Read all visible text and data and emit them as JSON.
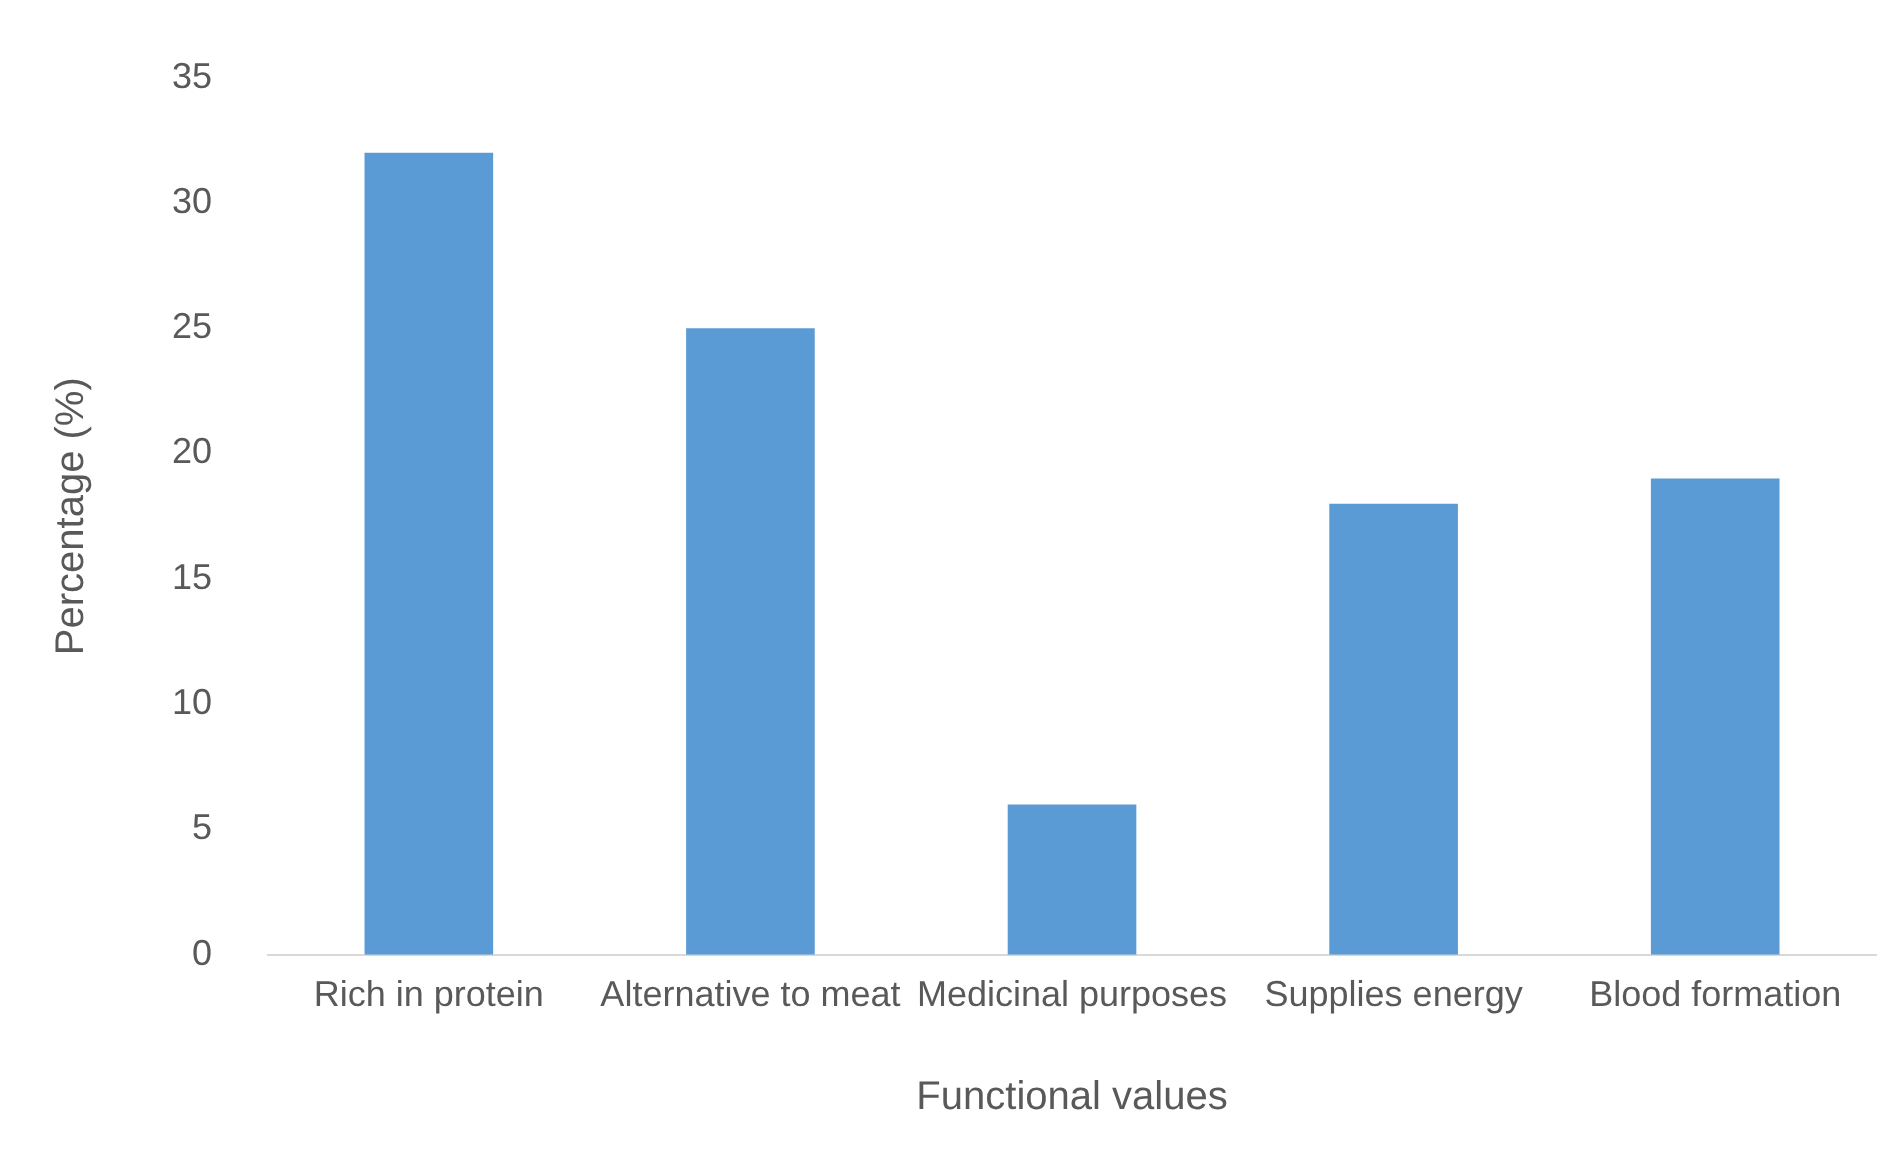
{
  "chart_data": {
    "type": "bar",
    "xlabel": "Functional values",
    "ylabel": "Percentage (%)",
    "categories": [
      "Rich in protein",
      "Alternative to meat",
      "Medicinal purposes",
      "Supplies energy",
      "Blood formation"
    ],
    "values": [
      32,
      25,
      6,
      18,
      19
    ],
    "color": "#5b9bd5",
    "ylim": [
      0,
      35
    ],
    "yticks": [
      0,
      5,
      10,
      15,
      20,
      25,
      30,
      35
    ],
    "grid": false,
    "legend": false
  }
}
